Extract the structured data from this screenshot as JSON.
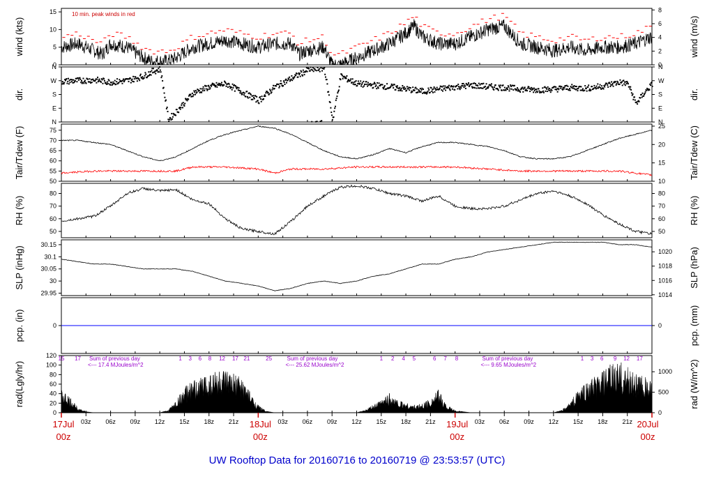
{
  "title": "UW Rooftop Data for 20160716  to  20160719 @ 23:53:57  (UTC)",
  "colors": {
    "main": "#000000",
    "peak": "#ff0000",
    "dew": "#ff0000",
    "pcp": "#0000ff",
    "title": "#0000cc",
    "day": "#cc0000",
    "ann": "#9900cc"
  },
  "x_axis": {
    "range_hours": [
      0,
      72
    ],
    "hour_ticks": [
      {
        "h": 3,
        "label": "03z"
      },
      {
        "h": 6,
        "label": "06z"
      },
      {
        "h": 9,
        "label": "09z"
      },
      {
        "h": 12,
        "label": "12z"
      },
      {
        "h": 15,
        "label": "15z"
      },
      {
        "h": 18,
        "label": "18z"
      },
      {
        "h": 21,
        "label": "21z"
      },
      {
        "h": 27,
        "label": "03z"
      },
      {
        "h": 30,
        "label": "06z"
      },
      {
        "h": 33,
        "label": "09z"
      },
      {
        "h": 36,
        "label": "12z"
      },
      {
        "h": 39,
        "label": "15z"
      },
      {
        "h": 42,
        "label": "18z"
      },
      {
        "h": 45,
        "label": "21z"
      },
      {
        "h": 51,
        "label": "03z"
      },
      {
        "h": 54,
        "label": "06z"
      },
      {
        "h": 57,
        "label": "09z"
      },
      {
        "h": 60,
        "label": "12z"
      },
      {
        "h": 63,
        "label": "15z"
      },
      {
        "h": 66,
        "label": "18z"
      },
      {
        "h": 69,
        "label": "21z"
      }
    ],
    "day_labels": [
      {
        "h": 0,
        "day": "17Jul",
        "time": "00z"
      },
      {
        "h": 24,
        "day": "18Jul",
        "time": "00z"
      },
      {
        "h": 48,
        "day": "19Jul",
        "time": "00z"
      },
      {
        "h": 72,
        "day": "20Jul",
        "time": "00z"
      }
    ]
  },
  "chart_data": [
    {
      "type": "line",
      "key": "wind",
      "ylabel_left": "wind (kts)",
      "ylabel_right": "wind (m/s)",
      "ylim": [
        0,
        16
      ],
      "yticks_left": [
        0,
        5,
        10,
        15
      ],
      "yticks_right": [
        0,
        2,
        4,
        6,
        8
      ],
      "right_scale": 0.5144,
      "annotation": "10 min. peak winds in red",
      "x": [
        0,
        2,
        4,
        5,
        6,
        8,
        10,
        11,
        12,
        13,
        14,
        16,
        18,
        20,
        22,
        24,
        26,
        28,
        29,
        30,
        32,
        33,
        34,
        36,
        38,
        40,
        42,
        43,
        44,
        46,
        48,
        50,
        52,
        54,
        56,
        58,
        60,
        62,
        64,
        66,
        68,
        70,
        72
      ],
      "values": [
        5,
        6,
        4,
        3,
        6,
        5,
        2,
        1,
        1,
        1,
        2,
        5,
        6,
        7,
        6,
        5,
        6,
        6,
        3,
        4,
        5,
        0,
        0,
        2,
        4,
        6,
        9,
        11,
        8,
        6,
        6,
        8,
        10,
        11,
        6,
        5,
        4,
        5,
        4,
        5,
        5,
        6,
        8
      ]
    },
    {
      "type": "scatter",
      "key": "dir",
      "ylabel_left": "dir.",
      "ylabel_right": "dir.",
      "ylim": [
        0,
        360
      ],
      "yticks_left": [
        "N",
        "E",
        "S",
        "W",
        "N"
      ],
      "yticks_right": [
        "N",
        "E",
        "S",
        "W",
        "N"
      ],
      "x": [
        0,
        2,
        4,
        6,
        8,
        10,
        11,
        12,
        13,
        14,
        16,
        18,
        20,
        22,
        24,
        26,
        28,
        30,
        31,
        32,
        33,
        34,
        36,
        38,
        40,
        42,
        44,
        46,
        48,
        50,
        52,
        54,
        56,
        58,
        60,
        62,
        64,
        66,
        68,
        69,
        70,
        71,
        72
      ],
      "values": [
        265,
        270,
        275,
        260,
        270,
        300,
        330,
        345,
        15,
        70,
        190,
        230,
        250,
        195,
        140,
        230,
        285,
        340,
        345,
        350,
        15,
        300,
        250,
        240,
        230,
        215,
        200,
        215,
        230,
        240,
        230,
        225,
        215,
        210,
        215,
        225,
        220,
        235,
        260,
        250,
        120,
        190,
        250
      ]
    },
    {
      "type": "line",
      "key": "temp",
      "ylabel_left": "Tair/Tdew (F)",
      "ylabel_right": "Tair/Tdew (C)",
      "ylim": [
        50,
        78
      ],
      "yticks_left": [
        50,
        55,
        60,
        65,
        70,
        75
      ],
      "yticks_right": [
        10,
        15,
        20,
        25
      ],
      "series": [
        {
          "x": [
            0,
            2,
            4,
            6,
            8,
            10,
            12,
            14,
            16,
            18,
            20,
            22,
            24,
            26,
            28,
            30,
            32,
            34,
            36,
            38,
            40,
            42,
            44,
            46,
            48,
            50,
            52,
            54,
            56,
            58,
            60,
            62,
            64,
            66,
            68,
            70,
            72
          ],
          "values": [
            70,
            70,
            69,
            68,
            65,
            62,
            60,
            62,
            66,
            70,
            73,
            75,
            77,
            76,
            73,
            69,
            65,
            62,
            61,
            63,
            66,
            64,
            67,
            69,
            69,
            68,
            67,
            65,
            62,
            61,
            61,
            62,
            65,
            68,
            71,
            73,
            75
          ]
        },
        {
          "x": [
            0,
            4,
            8,
            12,
            14,
            16,
            20,
            24,
            26,
            28,
            32,
            36,
            40,
            44,
            48,
            52,
            56,
            60,
            64,
            68,
            70,
            72
          ],
          "values": [
            54,
            55,
            55,
            55,
            55,
            57,
            57,
            56,
            54,
            56,
            56,
            57,
            57,
            57,
            57,
            56,
            55,
            55,
            55,
            55,
            54,
            53
          ]
        }
      ]
    },
    {
      "type": "line",
      "key": "rh",
      "ylabel_left": "RH (%)",
      "ylabel_right": "RH (%)",
      "ylim": [
        45,
        88
      ],
      "yticks_left": [
        50,
        60,
        70,
        80
      ],
      "yticks_right": [
        50,
        60,
        70,
        80
      ],
      "x": [
        0,
        2,
        4,
        6,
        8,
        10,
        12,
        14,
        16,
        18,
        20,
        22,
        24,
        26,
        28,
        30,
        32,
        34,
        36,
        38,
        40,
        42,
        44,
        46,
        48,
        50,
        52,
        54,
        56,
        58,
        60,
        62,
        64,
        66,
        68,
        70,
        72
      ],
      "values": [
        58,
        60,
        62,
        70,
        80,
        84,
        82,
        83,
        75,
        72,
        60,
        52,
        50,
        48,
        58,
        70,
        78,
        85,
        86,
        84,
        80,
        78,
        74,
        78,
        70,
        68,
        68,
        70,
        75,
        80,
        82,
        78,
        72,
        63,
        56,
        50,
        48
      ]
    },
    {
      "type": "line",
      "key": "slp",
      "ylabel_left": "SLP (inHg)",
      "ylabel_right": "SLP (hPa)",
      "ylim": [
        29.94,
        30.17
      ],
      "yticks_left": [
        29.95,
        30.0,
        30.05,
        30.1,
        30.15
      ],
      "yticks_right": [
        1014,
        1016,
        1018,
        1020
      ],
      "x": [
        0,
        2,
        4,
        6,
        8,
        10,
        12,
        14,
        16,
        18,
        20,
        22,
        24,
        26,
        28,
        30,
        32,
        34,
        36,
        38,
        40,
        42,
        44,
        46,
        48,
        50,
        52,
        54,
        56,
        58,
        60,
        62,
        64,
        66,
        68,
        70,
        72
      ],
      "values": [
        30.09,
        30.08,
        30.07,
        30.07,
        30.06,
        30.05,
        30.05,
        30.05,
        30.04,
        30.02,
        30.0,
        29.99,
        29.98,
        29.96,
        29.97,
        29.99,
        30.0,
        29.99,
        30.0,
        30.02,
        30.03,
        30.05,
        30.07,
        30.07,
        30.09,
        30.1,
        30.12,
        30.13,
        30.14,
        30.15,
        30.16,
        30.16,
        30.16,
        30.16,
        30.15,
        30.15,
        30.14
      ]
    },
    {
      "type": "line",
      "key": "pcp",
      "ylabel_left": "pcp. (in)",
      "ylabel_right": "pcp. (mm)",
      "ylim": [
        -1,
        1
      ],
      "yticks_left": [
        0
      ],
      "yticks_right": [
        0
      ],
      "x": [
        0,
        72
      ],
      "values": [
        0,
        0
      ]
    },
    {
      "type": "area",
      "key": "rad",
      "ylabel_left": "rad(Lgly/hr)",
      "ylabel_right": "rad (W/m^2)",
      "ylim": [
        0,
        120
      ],
      "yticks_left": [
        0,
        20,
        40,
        60,
        80,
        100,
        120
      ],
      "yticks_right": [
        0,
        500,
        1000
      ],
      "right_scale": 11.63,
      "x": [
        0,
        1,
        2,
        3,
        4,
        12,
        13,
        14,
        15,
        16,
        17,
        18,
        19,
        20,
        21,
        22,
        23,
        24,
        25,
        26,
        27,
        36,
        37,
        38,
        39,
        40,
        41,
        42,
        43,
        44,
        45,
        46,
        47,
        48,
        49,
        50,
        51,
        60,
        61,
        62,
        63,
        64,
        65,
        66,
        67,
        68,
        69,
        70,
        71,
        72
      ],
      "values": [
        45,
        30,
        12,
        2,
        0,
        0,
        5,
        25,
        50,
        60,
        70,
        80,
        85,
        80,
        75,
        70,
        40,
        15,
        3,
        0,
        0,
        0,
        5,
        15,
        25,
        40,
        25,
        20,
        15,
        18,
        30,
        45,
        15,
        5,
        2,
        0,
        0,
        0,
        5,
        20,
        45,
        60,
        70,
        80,
        95,
        100,
        90,
        80,
        70,
        60
      ],
      "hour_marks": [
        {
          "h": 0,
          "label": "15"
        },
        {
          "h": 2,
          "label": "17"
        },
        {
          "h": 14.5,
          "label": "1"
        },
        {
          "h": 15.7,
          "label": "3"
        },
        {
          "h": 16.9,
          "label": "6"
        },
        {
          "h": 18.1,
          "label": "8"
        },
        {
          "h": 19.6,
          "label": "12"
        },
        {
          "h": 21.2,
          "label": "17"
        },
        {
          "h": 22.6,
          "label": "21"
        },
        {
          "h": 25.3,
          "label": "25"
        },
        {
          "h": 39.0,
          "label": "1"
        },
        {
          "h": 40.4,
          "label": "2"
        },
        {
          "h": 41.7,
          "label": "4"
        },
        {
          "h": 43.0,
          "label": "5"
        },
        {
          "h": 45.5,
          "label": "6"
        },
        {
          "h": 46.8,
          "label": "7"
        },
        {
          "h": 48.2,
          "label": "8"
        },
        {
          "h": 63.5,
          "label": "1"
        },
        {
          "h": 64.7,
          "label": "3"
        },
        {
          "h": 65.9,
          "label": "6"
        },
        {
          "h": 67.5,
          "label": "9"
        },
        {
          "h": 68.9,
          "label": "12"
        },
        {
          "h": 70.5,
          "label": "17"
        }
      ],
      "day_notes": [
        {
          "h": 3.4,
          "line1": "Sum of previous day",
          "line2": "<--- 17.4 MJoules/m^2"
        },
        {
          "h": 27.5,
          "line1": "Sum of previous day",
          "line2": "<--- 25.62 MJoules/m^2"
        },
        {
          "h": 51.3,
          "line1": "Sum of previous day",
          "line2": "<--- 9.65 MJoules/m^2"
        }
      ]
    }
  ]
}
